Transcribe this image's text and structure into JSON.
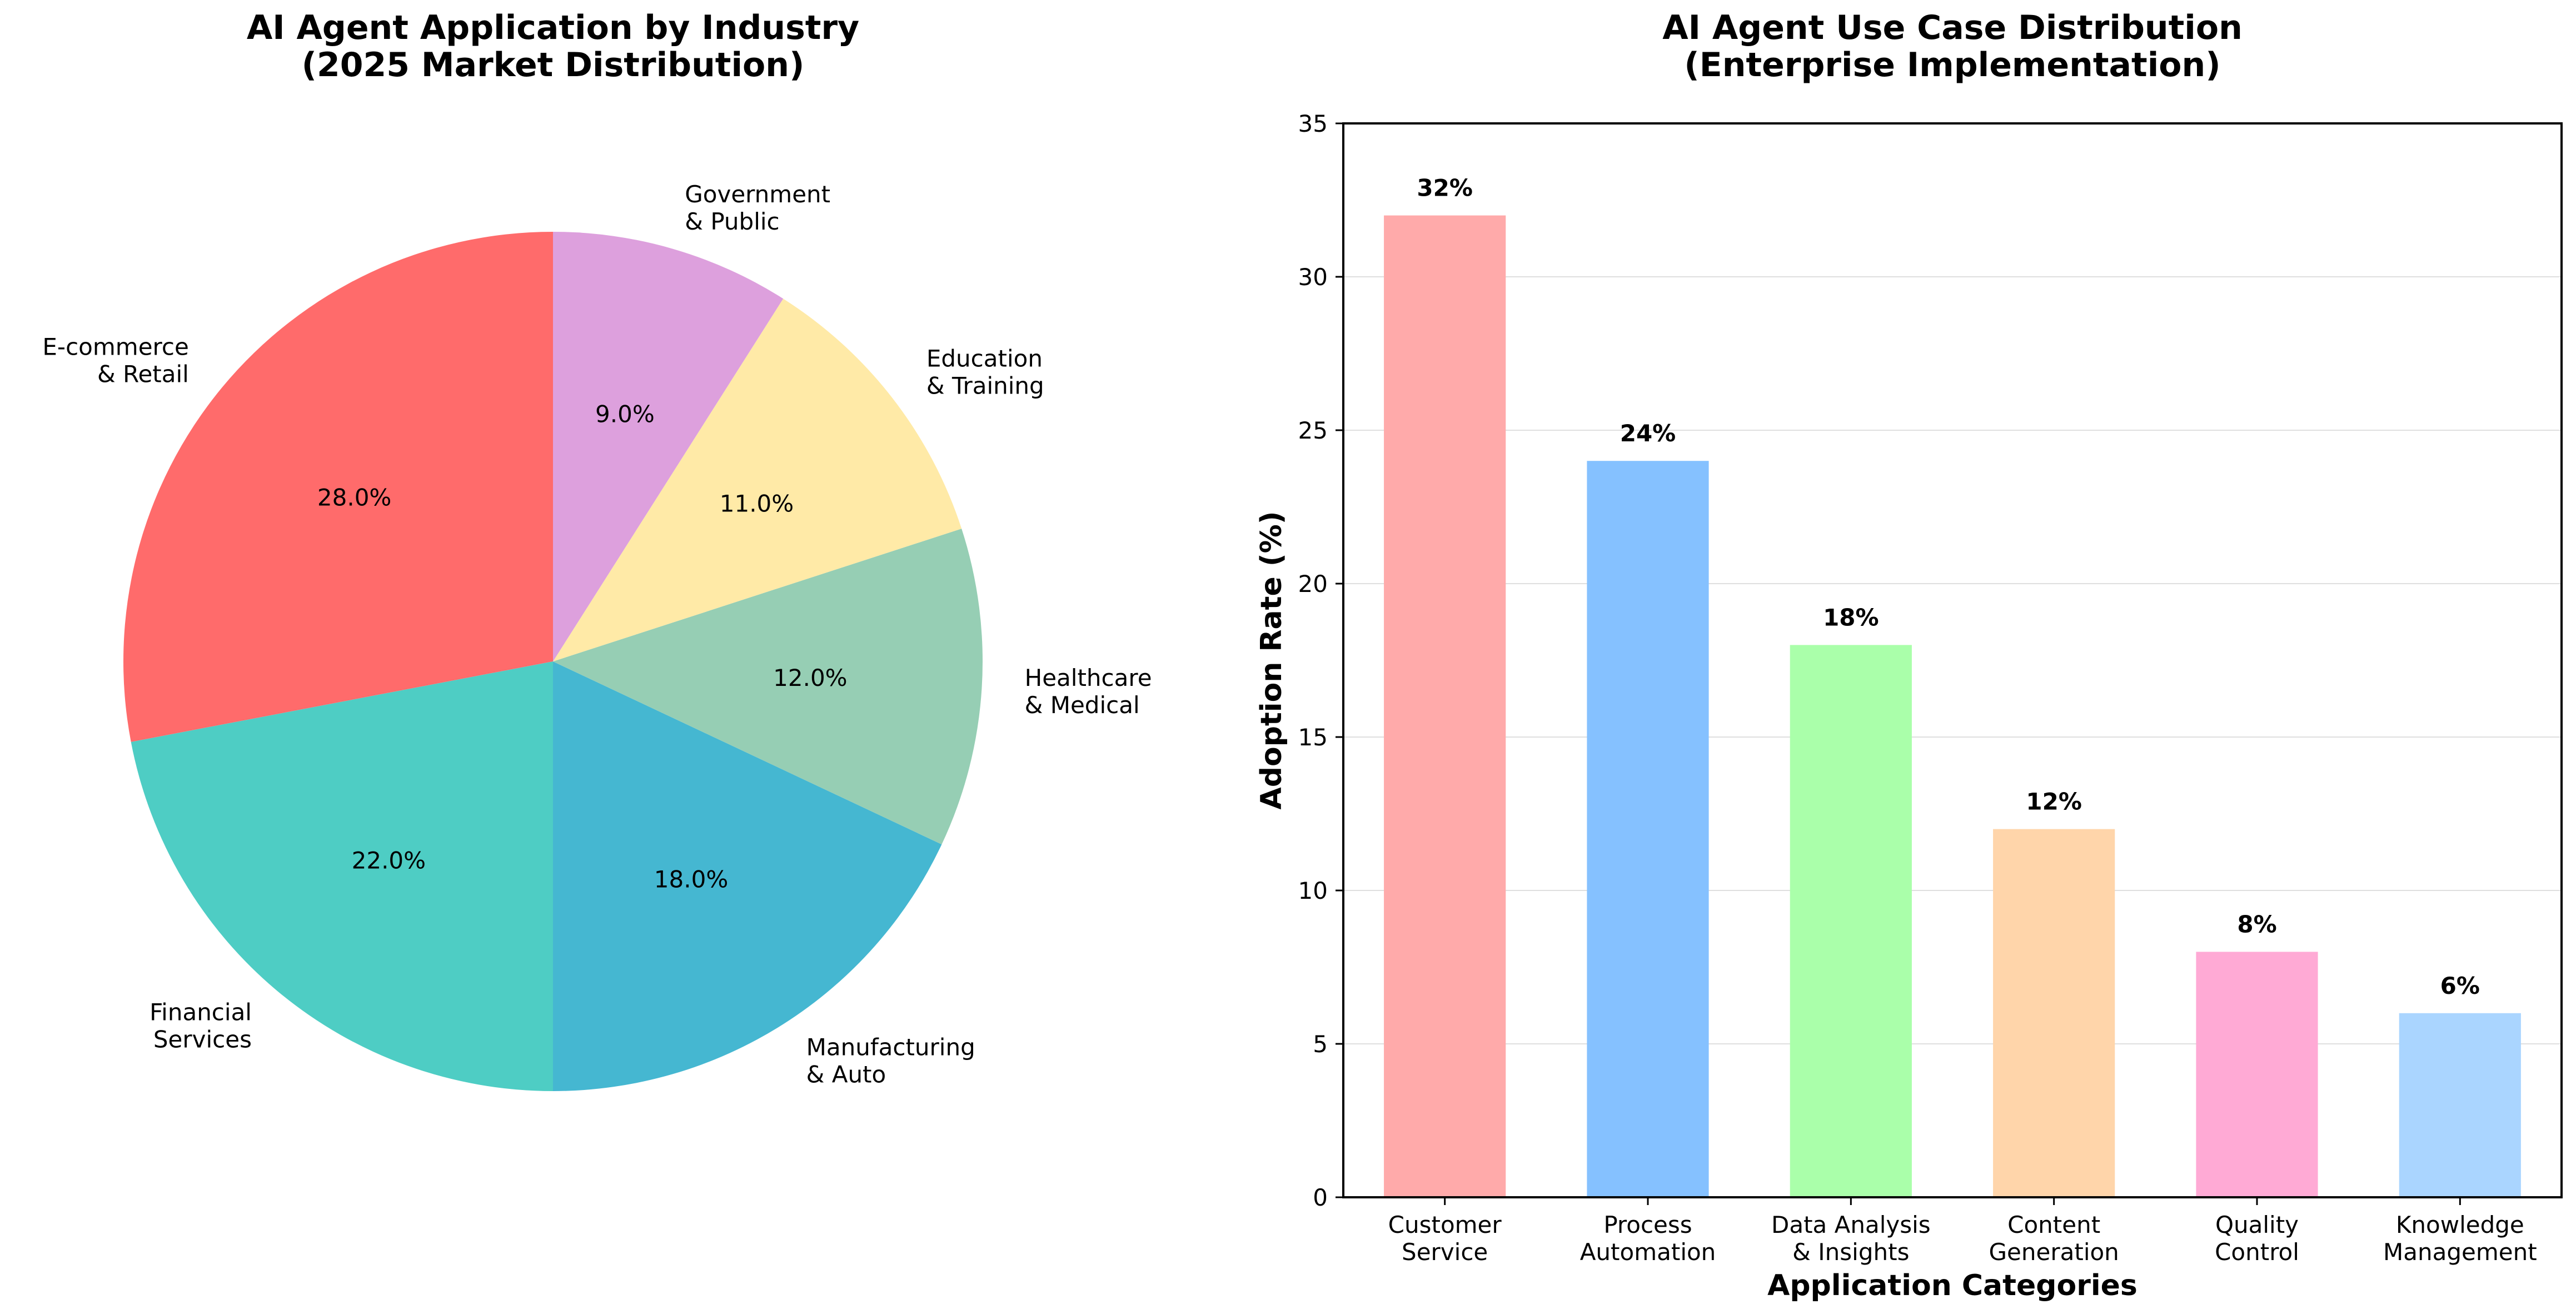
{
  "chart_data": [
    {
      "type": "pie",
      "title_lines": [
        "AI Agent Application by Industry",
        "(2025 Market Distribution)"
      ],
      "start_angle_deg": 90,
      "direction": "counterclockwise",
      "slices": [
        {
          "label_lines": [
            "E-commerce",
            "& Retail"
          ],
          "value": 28.0,
          "pct_label": "28.0%",
          "color": "#ff6b6b"
        },
        {
          "label_lines": [
            "Financial",
            "Services"
          ],
          "value": 22.0,
          "pct_label": "22.0%",
          "color": "#4ecdc4"
        },
        {
          "label_lines": [
            "Manufacturing",
            "& Auto"
          ],
          "value": 18.0,
          "pct_label": "18.0%",
          "color": "#45b7d1"
        },
        {
          "label_lines": [
            "Healthcare",
            "& Medical"
          ],
          "value": 12.0,
          "pct_label": "12.0%",
          "color": "#96ceb4"
        },
        {
          "label_lines": [
            "Education",
            "& Training"
          ],
          "value": 11.0,
          "pct_label": "11.0%",
          "color": "#ffeaa7"
        },
        {
          "label_lines": [
            "Government",
            "& Public"
          ],
          "value": 9.0,
          "pct_label": "9.0%",
          "color": "#dda0dd"
        }
      ]
    },
    {
      "type": "bar",
      "title_lines": [
        "AI Agent Use Case Distribution",
        "(Enterprise Implementation)"
      ],
      "xlabel": "Application Categories",
      "ylabel": "Adoption Rate (%)",
      "ylim": [
        0,
        35
      ],
      "yticks": [
        0,
        5,
        10,
        15,
        20,
        25,
        30,
        35
      ],
      "grid": "horizontal",
      "categories": [
        [
          "Customer",
          "Service"
        ],
        [
          "Process",
          "Automation"
        ],
        [
          "Data Analysis",
          "& Insights"
        ],
        [
          "Content",
          "Generation"
        ],
        [
          "Quality",
          "Control"
        ],
        [
          "Knowledge",
          "Management"
        ]
      ],
      "values": [
        32,
        24,
        18,
        12,
        8,
        6
      ],
      "value_labels": [
        "32%",
        "24%",
        "18%",
        "12%",
        "8%",
        "6%"
      ],
      "colors": [
        "#ffaaaa",
        "#85c1ff",
        "#aaffaa",
        "#ffd5aa",
        "#ffaad5",
        "#aad5ff"
      ]
    }
  ]
}
